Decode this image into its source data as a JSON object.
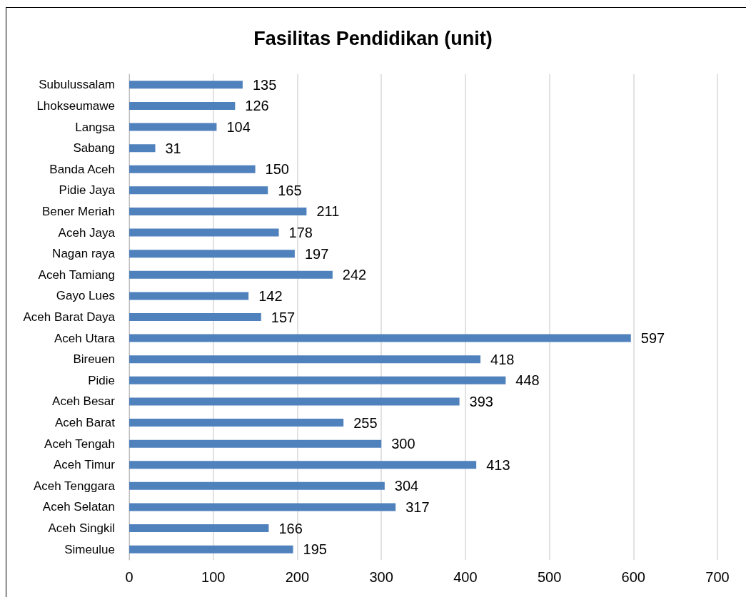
{
  "chart_data": {
    "type": "bar",
    "title": "Fasilitas Pendidikan (unit)",
    "orientation": "horizontal",
    "categories": [
      "Subulussalam",
      "Lhokseumawe",
      "Langsa",
      "Sabang",
      "Banda Aceh",
      "Pidie Jaya",
      "Bener Meriah",
      "Aceh Jaya",
      "Nagan raya",
      "Aceh Tamiang",
      "Gayo Lues",
      "Aceh Barat Daya",
      "Aceh Utara",
      "Bireuen",
      "Pidie",
      "Aceh Besar",
      "Aceh Barat",
      "Aceh Tengah",
      "Aceh Timur",
      "Aceh Tenggara",
      "Aceh Selatan",
      "Aceh Singkil",
      "Simeulue"
    ],
    "values": [
      135,
      126,
      104,
      31,
      150,
      165,
      211,
      178,
      197,
      242,
      142,
      157,
      597,
      418,
      448,
      393,
      255,
      300,
      413,
      304,
      317,
      166,
      195
    ],
    "color": "#4f81bd",
    "xlim": [
      0,
      700
    ],
    "xticks": [
      0,
      100,
      200,
      300,
      400,
      500,
      600,
      700
    ],
    "grid": "x",
    "data_labels": true
  }
}
